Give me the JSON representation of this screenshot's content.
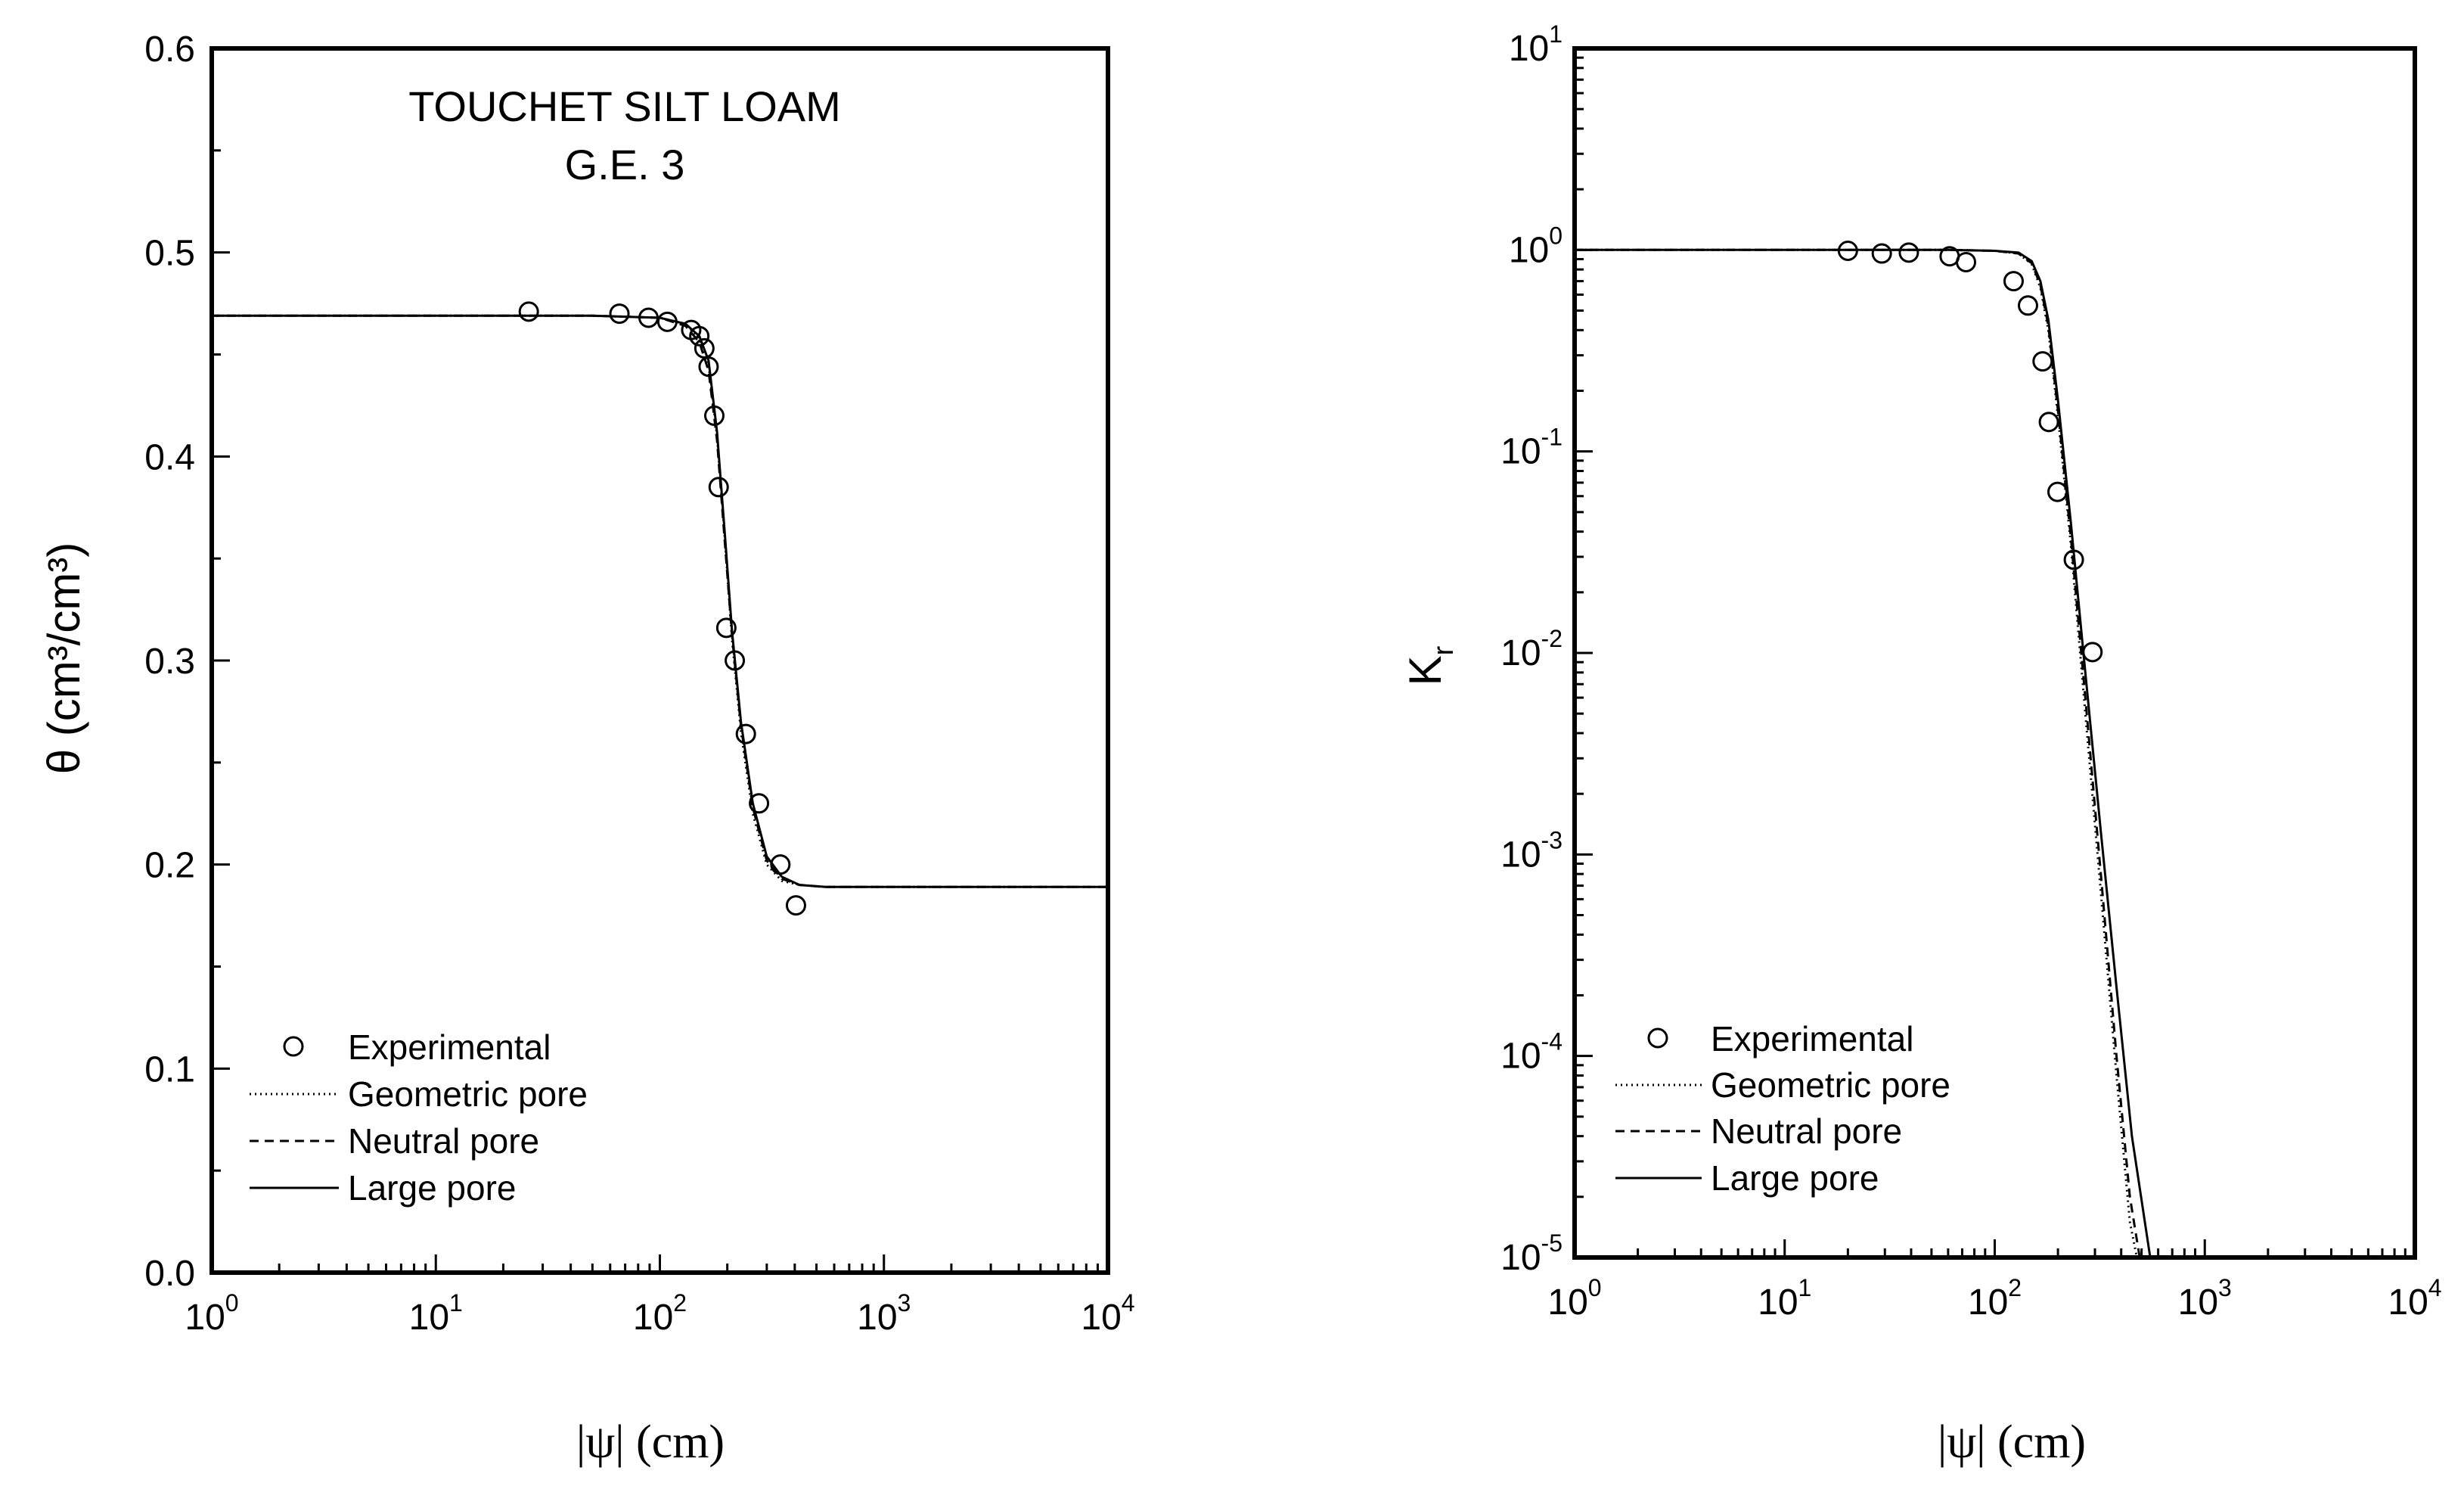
{
  "chart_data": [
    {
      "type": "line",
      "title": "TOUCHET SILT LOAM",
      "subtitle": "G.E. 3",
      "xlabel": "|ψ| (cm)",
      "ylabel": "θ (cm³/cm³)",
      "xscale": "log",
      "yscale": "linear",
      "xlim": [
        1,
        10000
      ],
      "ylim": [
        0.0,
        0.6
      ],
      "xticks": [
        {
          "value": 1,
          "base": "10",
          "exp": "0"
        },
        {
          "value": 10,
          "base": "10",
          "exp": "1"
        },
        {
          "value": 100,
          "base": "10",
          "exp": "2"
        },
        {
          "value": 1000,
          "base": "10",
          "exp": "3"
        },
        {
          "value": 10000,
          "base": "10",
          "exp": "4"
        }
      ],
      "yticks": [
        {
          "value": 0.0,
          "label": "0.0"
        },
        {
          "value": 0.1,
          "label": "0.1"
        },
        {
          "value": 0.2,
          "label": "0.2"
        },
        {
          "value": 0.3,
          "label": "0.3"
        },
        {
          "value": 0.4,
          "label": "0.4"
        },
        {
          "value": 0.5,
          "label": "0.5"
        },
        {
          "value": 0.6,
          "label": "0.6"
        }
      ],
      "legend": "bottom-left",
      "grid": false,
      "series": [
        {
          "name": "Experimental",
          "style": "markers",
          "x": [
            26,
            66,
            89,
            108,
            138,
            150,
            158,
            165,
            175,
            183,
            198,
            216,
            242,
            277,
            345,
            405
          ],
          "y": [
            0.471,
            0.47,
            0.468,
            0.466,
            0.462,
            0.459,
            0.453,
            0.444,
            0.42,
            0.385,
            0.316,
            0.3,
            0.264,
            0.23,
            0.2,
            0.18
          ]
        },
        {
          "name": "Geometric pore",
          "style": "dotted",
          "x": [
            1,
            50,
            100,
            130,
            150,
            165,
            180,
            195,
            210,
            230,
            260,
            300,
            350,
            420,
            550,
            1000,
            10000
          ],
          "y": [
            0.469,
            0.469,
            0.468,
            0.465,
            0.458,
            0.445,
            0.41,
            0.36,
            0.31,
            0.265,
            0.225,
            0.2,
            0.192,
            0.19,
            0.189,
            0.189,
            0.189
          ]
        },
        {
          "name": "Neutral pore",
          "style": "dashed",
          "x": [
            1,
            50,
            100,
            130,
            150,
            165,
            180,
            195,
            210,
            230,
            260,
            300,
            350,
            420,
            550,
            1000,
            10000
          ],
          "y": [
            0.469,
            0.469,
            0.468,
            0.464,
            0.456,
            0.442,
            0.408,
            0.358,
            0.312,
            0.268,
            0.228,
            0.202,
            0.193,
            0.19,
            0.189,
            0.189,
            0.189
          ]
        },
        {
          "name": "Large pore",
          "style": "solid",
          "x": [
            1,
            50,
            100,
            130,
            150,
            165,
            180,
            195,
            210,
            230,
            260,
            300,
            350,
            420,
            550,
            1000,
            10000
          ],
          "y": [
            0.469,
            0.469,
            0.468,
            0.465,
            0.459,
            0.447,
            0.412,
            0.362,
            0.314,
            0.27,
            0.23,
            0.204,
            0.194,
            0.19,
            0.189,
            0.189,
            0.189
          ]
        }
      ]
    },
    {
      "type": "line",
      "title": "",
      "xlabel": "|ψ| (cm)",
      "ylabel": "K",
      "ylabel_sub": "r",
      "xscale": "log",
      "yscale": "log",
      "xlim": [
        1,
        10000
      ],
      "ylim": [
        1e-05,
        10
      ],
      "xticks": [
        {
          "value": 1,
          "base": "10",
          "exp": "0"
        },
        {
          "value": 10,
          "base": "10",
          "exp": "1"
        },
        {
          "value": 100,
          "base": "10",
          "exp": "2"
        },
        {
          "value": 1000,
          "base": "10",
          "exp": "3"
        },
        {
          "value": 10000,
          "base": "10",
          "exp": "4"
        }
      ],
      "yticks": [
        {
          "value": 1e-05,
          "base": "10",
          "exp": "-5"
        },
        {
          "value": 0.0001,
          "base": "10",
          "exp": "-4"
        },
        {
          "value": 0.001,
          "base": "10",
          "exp": "-3"
        },
        {
          "value": 0.01,
          "base": "10",
          "exp": "-2"
        },
        {
          "value": 0.1,
          "base": "10",
          "exp": "-1"
        },
        {
          "value": 1,
          "base": "10",
          "exp": "0"
        },
        {
          "value": 10,
          "base": "10",
          "exp": "1"
        }
      ],
      "legend": "bottom-left",
      "grid": false,
      "series": [
        {
          "name": "Experimental",
          "style": "markers",
          "x": [
            20,
            29,
            39,
            61,
            73,
            123,
            144,
            169,
            181,
            199,
            238,
            292
          ],
          "y": [
            0.99,
            0.96,
            0.97,
            0.93,
            0.87,
            0.7,
            0.53,
            0.28,
            0.14,
            0.063,
            0.029,
            0.0101
          ]
        },
        {
          "name": "Geometric pore",
          "style": "dotted",
          "x": [
            1,
            60,
            100,
            130,
            150,
            165,
            180,
            200,
            230,
            270,
            320,
            380,
            440,
            475
          ],
          "y": [
            1.0,
            1.0,
            0.99,
            0.96,
            0.85,
            0.65,
            0.4,
            0.15,
            0.035,
            0.005,
            0.00065,
            8e-05,
            1.5e-05,
            1e-05
          ]
        },
        {
          "name": "Neutral pore",
          "style": "dashed",
          "x": [
            1,
            60,
            100,
            130,
            150,
            165,
            180,
            200,
            230,
            270,
            320,
            380,
            440,
            490
          ],
          "y": [
            1.0,
            1.0,
            0.99,
            0.96,
            0.86,
            0.67,
            0.42,
            0.16,
            0.038,
            0.006,
            0.0008,
            0.0001,
            2e-05,
            1e-05
          ]
        },
        {
          "name": "Large pore",
          "style": "solid",
          "x": [
            1,
            60,
            100,
            130,
            150,
            165,
            180,
            200,
            230,
            270,
            320,
            380,
            450,
            550
          ],
          "y": [
            1.0,
            1.0,
            0.99,
            0.97,
            0.88,
            0.7,
            0.45,
            0.18,
            0.045,
            0.008,
            0.0013,
            0.00022,
            4e-05,
            1e-05
          ]
        }
      ]
    }
  ]
}
